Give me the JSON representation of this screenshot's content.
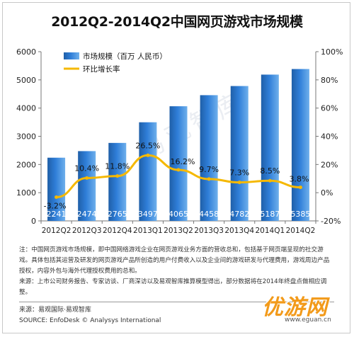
{
  "title": "2012Q2-2014Q2中国网页游戏市场规模",
  "chart_data": {
    "type": "bar",
    "categories": [
      "2012Q2",
      "2012Q3",
      "2012Q4",
      "2013Q1",
      "2013Q2",
      "2013Q3",
      "2013Q4",
      "2014Q1",
      "2014Q2"
    ],
    "series": [
      {
        "name": "市场规模（百万 人民币）",
        "type": "bar",
        "axis": "left",
        "values": [
          2241,
          2474,
          2765,
          3497,
          4065,
          4458,
          4782,
          5187,
          5385
        ],
        "labels": [
          "2241",
          "2474",
          "2765",
          "3497",
          "4065",
          "4458",
          "4782",
          "5187",
          "5385"
        ],
        "color": "#2f7ed8"
      },
      {
        "name": "环比增长率",
        "type": "line",
        "axis": "right",
        "values": [
          -3.2,
          10.4,
          11.8,
          26.5,
          16.2,
          9.7,
          7.3,
          8.5,
          3.8
        ],
        "labels": [
          "-3.2%",
          "10.4%",
          "11.8%",
          "26.5%",
          "16.2%",
          "9.7%",
          "7.3%",
          "8.5%",
          "3.8%"
        ],
        "color": "#f5b800"
      }
    ],
    "ylim": [
      0,
      6000
    ],
    "yticks": [
      "0",
      "1000",
      "2000",
      "3000",
      "4000",
      "5000",
      "6000"
    ],
    "y2lim": [
      -20,
      100
    ],
    "y2ticks": [
      "-20%",
      "0%",
      "20%",
      "40%",
      "60%",
      "80%",
      "100%"
    ],
    "legend_position": "top-left",
    "grid": false
  },
  "watermark": "易观智库",
  "notes": {
    "line1": "注：中国网页游戏市场规模，即中国网络游戏企业在网页游戏业务方面的营收总和，包括基于网页端呈现的社交游戏。具体包括其运营及研发的网页游戏产品所创造的用户付费收入以及企业间的游戏研发与代理费用，游戏周边产品授权，内容外包与海外代理授权费用的总和。",
    "line2": "来源：上市公司财务报告、专家访谈、厂商深访以及易观智库推算模型得出，部分数据将在2014年终盘点做相应调整。"
  },
  "source": {
    "line1": "来源：易观国际·易观智库",
    "line2": "SOURCE: EnfoDesk © Analysys International"
  },
  "logo": {
    "text": "优游网",
    "url": "www.eguan.cn"
  }
}
